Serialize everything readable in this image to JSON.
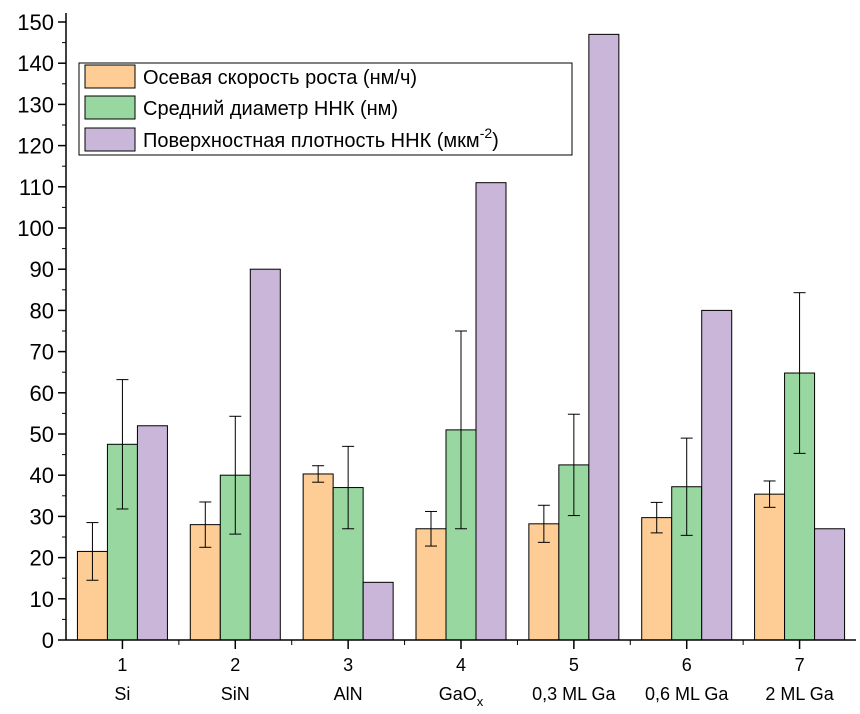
{
  "chart_data": {
    "type": "bar",
    "categories": [
      {
        "number": "1",
        "name": "Si",
        "sub": ""
      },
      {
        "number": "2",
        "name": "SiN",
        "sub": ""
      },
      {
        "number": "3",
        "name": "AlN",
        "sub": ""
      },
      {
        "number": "4",
        "name": "GaO",
        "sub": "x"
      },
      {
        "number": "5",
        "name": "0,3 ML Ga",
        "sub": ""
      },
      {
        "number": "6",
        "name": "0,6 ML Ga",
        "sub": ""
      },
      {
        "number": "7",
        "name": "2 ML Ga",
        "sub": ""
      }
    ],
    "series": [
      {
        "name": "Осевая скорость роста (нм/ч)",
        "color": "#fdcd95",
        "values": [
          21.5,
          28,
          40.3,
          27,
          28.2,
          29.7,
          35.4
        ],
        "error": [
          7,
          5.5,
          2,
          4.2,
          4.5,
          3.7,
          3.2
        ]
      },
      {
        "name": "Средний диаметр ННК (нм)",
        "color": "#99d7a0",
        "values": [
          47.5,
          40,
          37,
          51,
          42.5,
          37.2,
          64.8
        ],
        "error": [
          15.7,
          14.3,
          10,
          24,
          12.3,
          11.8,
          19.5
        ]
      },
      {
        "name": "Поверхностная плотность ННК (мкм",
        "name_sup": "-2",
        "name_suffix": ")",
        "color": "#c9b6d9",
        "values": [
          52,
          90,
          14,
          111,
          147,
          80,
          27
        ],
        "error": null
      }
    ],
    "ylim": [
      0,
      150
    ],
    "yticks": [
      0,
      10,
      20,
      30,
      40,
      50,
      60,
      70,
      80,
      90,
      100,
      110,
      120,
      130,
      140,
      150
    ],
    "xlabel": "",
    "ylabel": "",
    "title": "",
    "legend_position": "top-left",
    "grid": false
  }
}
